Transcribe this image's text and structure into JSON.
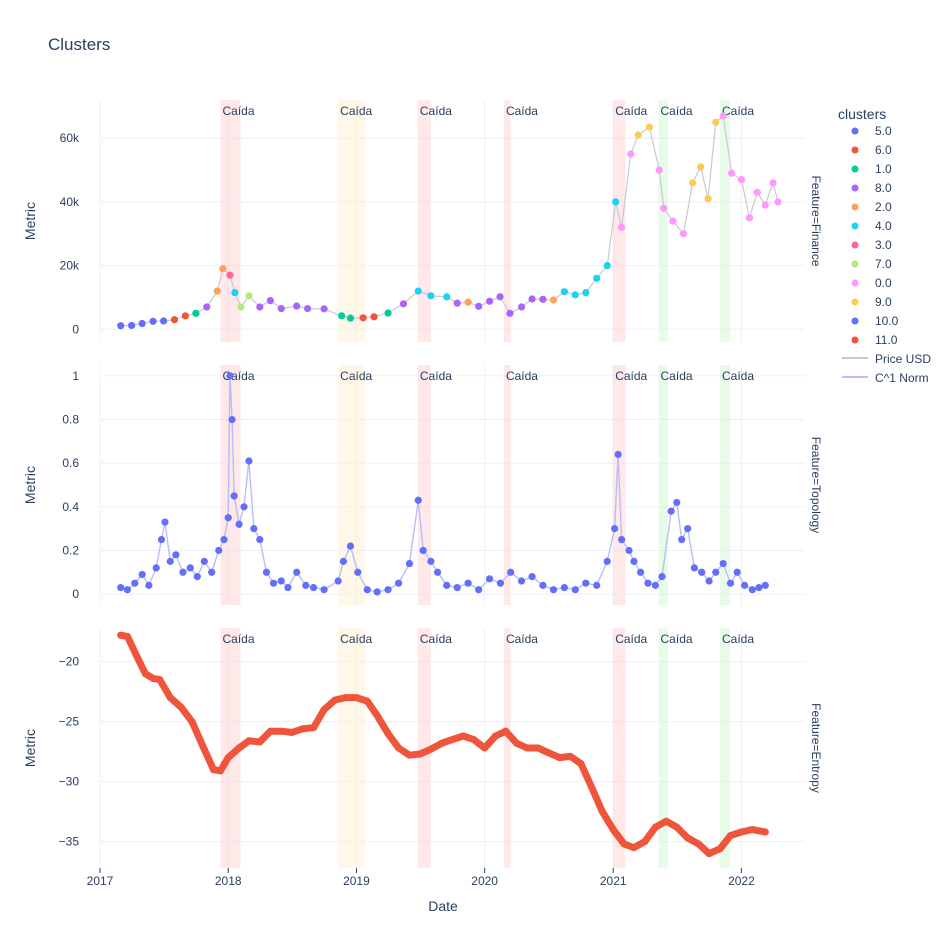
{
  "title": "Clusters",
  "xlabel": "Date",
  "ylabel": "Metric",
  "legend": {
    "title": "clusters",
    "entries": [
      {
        "label": "5.0",
        "color": "#636efa",
        "kind": "marker"
      },
      {
        "label": "6.0",
        "color": "#ef553b",
        "kind": "marker"
      },
      {
        "label": "1.0",
        "color": "#00cc96",
        "kind": "marker"
      },
      {
        "label": "8.0",
        "color": "#ab63fa",
        "kind": "marker"
      },
      {
        "label": "2.0",
        "color": "#ffa15a",
        "kind": "marker"
      },
      {
        "label": "4.0",
        "color": "#19d3f3",
        "kind": "marker"
      },
      {
        "label": "3.0",
        "color": "#ff6692",
        "kind": "marker"
      },
      {
        "label": "7.0",
        "color": "#b6e880",
        "kind": "marker"
      },
      {
        "label": "0.0",
        "color": "#ff97ff",
        "kind": "marker"
      },
      {
        "label": "9.0",
        "color": "#fecb52",
        "kind": "marker"
      },
      {
        "label": "10.0",
        "color": "#636efa",
        "kind": "marker"
      },
      {
        "label": "11.0",
        "color": "#ef553b",
        "kind": "marker"
      },
      {
        "label": "Price USD",
        "color": "#c8cad2",
        "kind": "line"
      },
      {
        "label": "C^1 Norm",
        "color": "#b9bdf8",
        "kind": "line"
      }
    ]
  },
  "chart_data": {
    "type": "scatter",
    "x_ticks": [
      "2017",
      "2018",
      "2019",
      "2020",
      "2021",
      "2022"
    ],
    "x_range": [
      "2017-01-01",
      "2022-07-01"
    ],
    "annotation_label": "Caída",
    "shaded_regions": [
      {
        "start": "2017-12-10",
        "end": "2018-02-05",
        "color": "#ffd5d5"
      },
      {
        "start": "2018-11-10",
        "end": "2019-01-25",
        "color": "#fff0d5"
      },
      {
        "start": "2019-06-25",
        "end": "2019-08-01",
        "color": "#ffd5d5"
      },
      {
        "start": "2020-02-25",
        "end": "2020-03-15",
        "color": "#ffd5d5"
      },
      {
        "start": "2021-01-01",
        "end": "2021-02-05",
        "color": "#ffd5d5"
      },
      {
        "start": "2021-05-10",
        "end": "2021-06-05",
        "color": "#d5f5d5"
      },
      {
        "start": "2021-11-01",
        "end": "2021-11-30",
        "color": "#d5f5d5"
      }
    ],
    "panels": [
      {
        "feature_label": "Feature=Finance",
        "ylim": [
          -4000,
          72000
        ],
        "y_ticks": [
          {
            "v": 0,
            "label": "0"
          },
          {
            "v": 20000,
            "label": "20k"
          },
          {
            "v": 40000,
            "label": "40k"
          },
          {
            "v": 60000,
            "label": "60k"
          }
        ],
        "line_series": "Price USD",
        "points": [
          [
            "2017-03-01",
            1100,
            0
          ],
          [
            "2017-04-01",
            1200,
            0
          ],
          [
            "2017-05-01",
            1800,
            0
          ],
          [
            "2017-06-01",
            2500,
            0
          ],
          [
            "2017-07-01",
            2600,
            0
          ],
          [
            "2017-08-01",
            3000,
            1
          ],
          [
            "2017-09-01",
            4200,
            1
          ],
          [
            "2017-10-01",
            5000,
            2
          ],
          [
            "2017-11-01",
            7000,
            3
          ],
          [
            "2017-12-01",
            12000,
            4
          ],
          [
            "2017-12-17",
            19000,
            4
          ],
          [
            "2018-01-06",
            17000,
            6
          ],
          [
            "2018-01-20",
            11500,
            5
          ],
          [
            "2018-02-06",
            7000,
            7
          ],
          [
            "2018-03-01",
            10500,
            7
          ],
          [
            "2018-04-01",
            7000,
            3
          ],
          [
            "2018-05-01",
            9000,
            3
          ],
          [
            "2018-06-01",
            6500,
            3
          ],
          [
            "2018-07-15",
            7300,
            3
          ],
          [
            "2018-08-15",
            6500,
            3
          ],
          [
            "2018-10-01",
            6400,
            3
          ],
          [
            "2018-11-20",
            4200,
            2
          ],
          [
            "2018-12-15",
            3500,
            2
          ],
          [
            "2019-01-20",
            3600,
            1
          ],
          [
            "2019-02-20",
            3900,
            1
          ],
          [
            "2019-04-01",
            5100,
            2
          ],
          [
            "2019-05-15",
            8000,
            3
          ],
          [
            "2019-06-26",
            12000,
            5
          ],
          [
            "2019-08-01",
            10500,
            5
          ],
          [
            "2019-09-15",
            10200,
            5
          ],
          [
            "2019-10-15",
            8200,
            3
          ],
          [
            "2019-11-15",
            8500,
            4
          ],
          [
            "2019-12-15",
            7200,
            3
          ],
          [
            "2020-01-15",
            8800,
            3
          ],
          [
            "2020-02-14",
            10200,
            3
          ],
          [
            "2020-03-13",
            5000,
            3
          ],
          [
            "2020-04-15",
            7000,
            3
          ],
          [
            "2020-05-15",
            9500,
            3
          ],
          [
            "2020-06-15",
            9400,
            3
          ],
          [
            "2020-07-15",
            9200,
            4
          ],
          [
            "2020-08-15",
            11800,
            5
          ],
          [
            "2020-09-15",
            10800,
            5
          ],
          [
            "2020-10-15",
            11500,
            5
          ],
          [
            "2020-11-15",
            16000,
            5
          ],
          [
            "2020-12-15",
            20000,
            5
          ],
          [
            "2021-01-08",
            40000,
            5
          ],
          [
            "2021-01-25",
            32000,
            8
          ],
          [
            "2021-02-20",
            55000,
            8
          ],
          [
            "2021-03-13",
            61000,
            9
          ],
          [
            "2021-04-14",
            63500,
            9
          ],
          [
            "2021-05-12",
            50000,
            8
          ],
          [
            "2021-05-25",
            38000,
            8
          ],
          [
            "2021-06-20",
            34000,
            8
          ],
          [
            "2021-07-20",
            30000,
            8
          ],
          [
            "2021-08-15",
            46000,
            9
          ],
          [
            "2021-09-07",
            51000,
            9
          ],
          [
            "2021-09-28",
            41000,
            9
          ],
          [
            "2021-10-20",
            65000,
            9
          ],
          [
            "2021-11-10",
            67000,
            8
          ],
          [
            "2021-12-04",
            49000,
            8
          ],
          [
            "2022-01-01",
            47000,
            8
          ],
          [
            "2022-01-24",
            35000,
            8
          ],
          [
            "2022-02-15",
            43000,
            8
          ],
          [
            "2022-03-10",
            39000,
            8
          ],
          [
            "2022-04-01",
            46000,
            8
          ],
          [
            "2022-04-15",
            40000,
            8
          ]
        ]
      },
      {
        "feature_label": "Feature=Topology",
        "ylim": [
          -0.05,
          1.05
        ],
        "y_ticks": [
          {
            "v": 0,
            "label": "0"
          },
          {
            "v": 0.2,
            "label": "0.2"
          },
          {
            "v": 0.4,
            "label": "0.4"
          },
          {
            "v": 0.6,
            "label": "0.6"
          },
          {
            "v": 0.8,
            "label": "0.8"
          },
          {
            "v": 1,
            "label": "1"
          }
        ],
        "line_series": "C^1 Norm",
        "color": "#636efa",
        "points": [
          [
            "2017-03-01",
            0.03
          ],
          [
            "2017-03-20",
            0.02
          ],
          [
            "2017-04-10",
            0.05
          ],
          [
            "2017-05-01",
            0.09
          ],
          [
            "2017-05-20",
            0.04
          ],
          [
            "2017-06-10",
            0.12
          ],
          [
            "2017-06-25",
            0.25
          ],
          [
            "2017-07-05",
            0.33
          ],
          [
            "2017-07-20",
            0.15
          ],
          [
            "2017-08-05",
            0.18
          ],
          [
            "2017-08-25",
            0.1
          ],
          [
            "2017-09-15",
            0.12
          ],
          [
            "2017-10-05",
            0.08
          ],
          [
            "2017-10-25",
            0.15
          ],
          [
            "2017-11-15",
            0.1
          ],
          [
            "2017-12-05",
            0.2
          ],
          [
            "2017-12-20",
            0.25
          ],
          [
            "2018-01-01",
            0.35
          ],
          [
            "2018-01-06",
            1.0
          ],
          [
            "2018-01-12",
            0.8
          ],
          [
            "2018-01-18",
            0.45
          ],
          [
            "2018-02-01",
            0.32
          ],
          [
            "2018-02-15",
            0.4
          ],
          [
            "2018-03-01",
            0.61
          ],
          [
            "2018-03-15",
            0.3
          ],
          [
            "2018-04-01",
            0.25
          ],
          [
            "2018-04-20",
            0.1
          ],
          [
            "2018-05-10",
            0.05
          ],
          [
            "2018-06-01",
            0.06
          ],
          [
            "2018-06-20",
            0.03
          ],
          [
            "2018-07-15",
            0.1
          ],
          [
            "2018-08-10",
            0.04
          ],
          [
            "2018-09-01",
            0.03
          ],
          [
            "2018-10-01",
            0.02
          ],
          [
            "2018-11-10",
            0.06
          ],
          [
            "2018-11-25",
            0.15
          ],
          [
            "2018-12-15",
            0.22
          ],
          [
            "2019-01-05",
            0.1
          ],
          [
            "2019-02-01",
            0.02
          ],
          [
            "2019-03-01",
            0.01
          ],
          [
            "2019-04-01",
            0.02
          ],
          [
            "2019-05-01",
            0.05
          ],
          [
            "2019-06-01",
            0.14
          ],
          [
            "2019-06-26",
            0.43
          ],
          [
            "2019-07-10",
            0.2
          ],
          [
            "2019-08-01",
            0.15
          ],
          [
            "2019-08-20",
            0.1
          ],
          [
            "2019-09-15",
            0.04
          ],
          [
            "2019-10-15",
            0.03
          ],
          [
            "2019-11-15",
            0.05
          ],
          [
            "2019-12-15",
            0.02
          ],
          [
            "2020-01-15",
            0.07
          ],
          [
            "2020-02-15",
            0.05
          ],
          [
            "2020-03-15",
            0.1
          ],
          [
            "2020-04-15",
            0.06
          ],
          [
            "2020-05-15",
            0.08
          ],
          [
            "2020-06-15",
            0.04
          ],
          [
            "2020-07-15",
            0.02
          ],
          [
            "2020-08-15",
            0.03
          ],
          [
            "2020-09-15",
            0.02
          ],
          [
            "2020-10-15",
            0.05
          ],
          [
            "2020-11-15",
            0.04
          ],
          [
            "2020-12-15",
            0.15
          ],
          [
            "2021-01-05",
            0.3
          ],
          [
            "2021-01-15",
            0.64
          ],
          [
            "2021-01-25",
            0.25
          ],
          [
            "2021-02-15",
            0.2
          ],
          [
            "2021-03-01",
            0.15
          ],
          [
            "2021-03-20",
            0.1
          ],
          [
            "2021-04-10",
            0.05
          ],
          [
            "2021-05-01",
            0.04
          ],
          [
            "2021-05-20",
            0.08
          ],
          [
            "2021-06-15",
            0.38
          ],
          [
            "2021-07-01",
            0.42
          ],
          [
            "2021-07-15",
            0.25
          ],
          [
            "2021-08-01",
            0.3
          ],
          [
            "2021-08-20",
            0.12
          ],
          [
            "2021-09-10",
            0.1
          ],
          [
            "2021-10-01",
            0.06
          ],
          [
            "2021-10-20",
            0.1
          ],
          [
            "2021-11-10",
            0.14
          ],
          [
            "2021-12-01",
            0.05
          ],
          [
            "2021-12-20",
            0.1
          ],
          [
            "2022-01-10",
            0.04
          ],
          [
            "2022-02-01",
            0.02
          ],
          [
            "2022-02-20",
            0.03
          ],
          [
            "2022-03-10",
            0.04
          ]
        ]
      },
      {
        "feature_label": "Feature=Entropy",
        "ylim": [
          -37.2,
          -17.2
        ],
        "y_ticks": [
          {
            "v": -20,
            "label": "−20"
          },
          {
            "v": -25,
            "label": "−25"
          },
          {
            "v": -30,
            "label": "−30"
          },
          {
            "v": -35,
            "label": "−35"
          }
        ],
        "color": "#ef553b",
        "points": [
          [
            "2017-03-01",
            -17.8
          ],
          [
            "2017-03-20",
            -17.9
          ],
          [
            "2017-04-15",
            -19.5
          ],
          [
            "2017-05-10",
            -21.0
          ],
          [
            "2017-06-01",
            -21.4
          ],
          [
            "2017-06-20",
            -21.5
          ],
          [
            "2017-07-20",
            -23.0
          ],
          [
            "2017-08-20",
            -23.8
          ],
          [
            "2017-09-20",
            -25.0
          ],
          [
            "2017-10-20",
            -27.0
          ],
          [
            "2017-11-20",
            -29.0
          ],
          [
            "2017-12-10",
            -29.1
          ],
          [
            "2018-01-01",
            -28.0
          ],
          [
            "2018-02-01",
            -27.2
          ],
          [
            "2018-03-01",
            -26.6
          ],
          [
            "2018-04-01",
            -26.7
          ],
          [
            "2018-05-01",
            -25.8
          ],
          [
            "2018-06-01",
            -25.8
          ],
          [
            "2018-07-01",
            -25.9
          ],
          [
            "2018-08-01",
            -25.6
          ],
          [
            "2018-09-01",
            -25.5
          ],
          [
            "2018-10-01",
            -24.0
          ],
          [
            "2018-11-01",
            -23.2
          ],
          [
            "2018-12-01",
            -23.0
          ],
          [
            "2019-01-01",
            -23.0
          ],
          [
            "2019-02-01",
            -23.3
          ],
          [
            "2019-03-01",
            -24.5
          ],
          [
            "2019-04-01",
            -26.0
          ],
          [
            "2019-05-01",
            -27.2
          ],
          [
            "2019-06-01",
            -27.8
          ],
          [
            "2019-07-01",
            -27.7
          ],
          [
            "2019-08-01",
            -27.3
          ],
          [
            "2019-09-01",
            -26.8
          ],
          [
            "2019-10-01",
            -26.5
          ],
          [
            "2019-11-01",
            -26.2
          ],
          [
            "2019-12-01",
            -26.5
          ],
          [
            "2020-01-01",
            -27.2
          ],
          [
            "2020-02-01",
            -26.2
          ],
          [
            "2020-03-01",
            -25.8
          ],
          [
            "2020-04-01",
            -26.8
          ],
          [
            "2020-05-01",
            -27.2
          ],
          [
            "2020-06-01",
            -27.2
          ],
          [
            "2020-07-01",
            -27.6
          ],
          [
            "2020-08-01",
            -28.0
          ],
          [
            "2020-09-01",
            -27.9
          ],
          [
            "2020-10-01",
            -28.5
          ],
          [
            "2020-11-01",
            -30.5
          ],
          [
            "2020-12-01",
            -32.5
          ],
          [
            "2021-01-01",
            -34.0
          ],
          [
            "2021-02-01",
            -35.2
          ],
          [
            "2021-03-01",
            -35.5
          ],
          [
            "2021-04-01",
            -35.0
          ],
          [
            "2021-05-01",
            -33.8
          ],
          [
            "2021-06-01",
            -33.3
          ],
          [
            "2021-07-01",
            -33.8
          ],
          [
            "2021-08-01",
            -34.7
          ],
          [
            "2021-09-01",
            -35.2
          ],
          [
            "2021-10-01",
            -36.0
          ],
          [
            "2021-11-01",
            -35.6
          ],
          [
            "2021-12-01",
            -34.5
          ],
          [
            "2022-01-01",
            -34.2
          ],
          [
            "2022-02-01",
            -34.0
          ],
          [
            "2022-03-10",
            -34.2
          ]
        ]
      }
    ]
  }
}
